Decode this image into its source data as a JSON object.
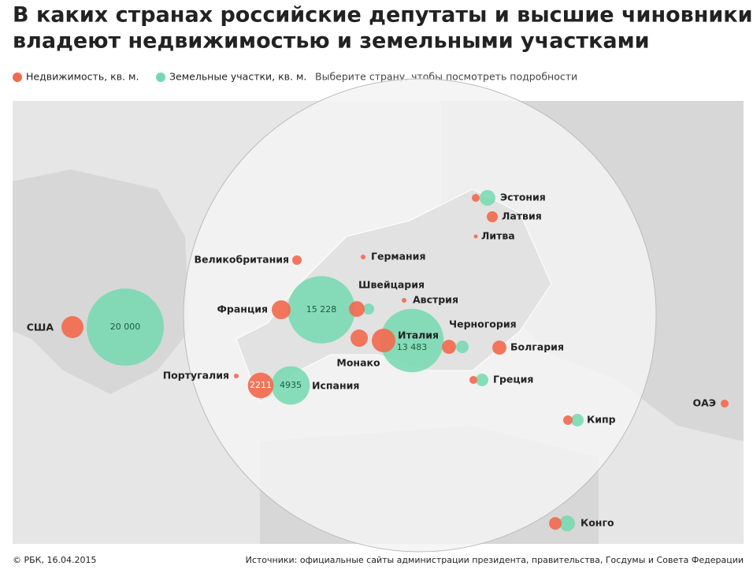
{
  "header": {
    "title_line1": "В каких странах российские депутаты и высшие чиновники",
    "title_line2": "владеют недвижимостью и земельными участками"
  },
  "legend": {
    "real_estate": "Недвижимость, кв. м.",
    "land": "Земельные участки, кв. м.",
    "hint": "Выберите страну, чтобы посмотреть подробности"
  },
  "colors": {
    "real_estate": "#f26b4f",
    "land": "#74d9b0"
  },
  "countries": [
    {
      "name": "США",
      "real_estate": 1630,
      "land": 20000,
      "land_label": "20 000"
    },
    {
      "name": "Португалия",
      "real_estate": 75,
      "land": null
    },
    {
      "name": "Испания",
      "real_estate": 2211,
      "land": 4935
    },
    {
      "name": "Франция",
      "real_estate": 1200,
      "land": 15228,
      "land_label": "15 228"
    },
    {
      "name": "Великобритания",
      "real_estate": 300,
      "land": null
    },
    {
      "name": "Германия",
      "real_estate": 75,
      "land": null
    },
    {
      "name": "Швейцария",
      "real_estate": 830,
      "land": 410
    },
    {
      "name": "Австрия",
      "real_estate": 75,
      "land": null
    },
    {
      "name": "Монако",
      "real_estate": 1000,
      "land": null
    },
    {
      "name": "Италия",
      "real_estate": 1870,
      "land": 13483,
      "land_label": "13 483"
    },
    {
      "name": "Черногория",
      "real_estate": 670,
      "land": 530
    },
    {
      "name": "Болгария",
      "real_estate": 670,
      "land": null
    },
    {
      "name": "Эстония",
      "real_estate": 210,
      "land": 830
    },
    {
      "name": "Латвия",
      "real_estate": 410,
      "land": null
    },
    {
      "name": "Литва",
      "real_estate": 50,
      "land": null
    },
    {
      "name": "Греция",
      "real_estate": 210,
      "land": 530
    },
    {
      "name": "Кипр",
      "real_estate": 300,
      "land": 530
    },
    {
      "name": "ОАЭ",
      "real_estate": 210,
      "land": null
    },
    {
      "name": "Конго",
      "real_estate": 530,
      "land": 830
    }
  ],
  "footer": {
    "copyright": "© РБК, 16.04.2015",
    "sources": "Источники: официальные сайты администрации президента, правительства, Госдумы и Совета Федерации"
  }
}
